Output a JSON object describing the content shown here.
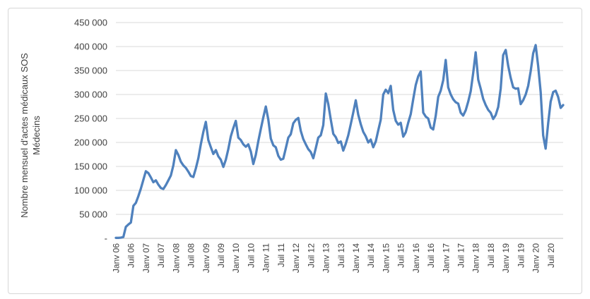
{
  "chart_data": {
    "type": "line",
    "title": "",
    "ylabel_line1": "Nombre mensuel d'actes médicaux SOS",
    "ylabel_line2": "Médecins",
    "xlabel": "",
    "legend": "none",
    "grid": "horizontal",
    "ylim": [
      0,
      450000
    ],
    "y_step": 50000,
    "y_tick_labels": [
      "-",
      "50 000",
      "100 000",
      "150 000",
      "200 000",
      "250 000",
      "300 000",
      "350 000",
      "400 000",
      "450 000"
    ],
    "x_tick_every_months": 6,
    "x_tick_labels": [
      "Janv 06",
      "Juil 06",
      "Janv 07",
      "Juil 07",
      "Janv 08",
      "Juil 08",
      "Janv 09",
      "Juil 09",
      "Janv 10",
      "Juil 10",
      "Janv 11",
      "Juil 11",
      "Janv 12",
      "Juil 12",
      "Janv 13",
      "Juil 13",
      "Janv 14",
      "Juil 14",
      "Janv 15",
      "Juil 15",
      "Janv 16",
      "Juil 16",
      "Janv 17",
      "Juil 17",
      "Janv 18",
      "Juil 18",
      "Janv 19",
      "Juil 19",
      "Janv 20",
      "Juil 20"
    ],
    "line_color": "#4F81BD",
    "gridline_color": "#D9D9D9",
    "axis_line_color": "#BFBFBF",
    "text_color": "#404040",
    "series": [
      {
        "name": "Nombre mensuel d'actes médicaux SOS Médecins",
        "start_month": "Janv 06",
        "values": [
          1000,
          1000,
          1500,
          3000,
          24000,
          29000,
          33000,
          68000,
          74000,
          88000,
          104000,
          122000,
          140000,
          136000,
          127000,
          117000,
          121000,
          112000,
          105000,
          103000,
          111000,
          121000,
          131000,
          152000,
          184000,
          174000,
          160000,
          152000,
          147000,
          139000,
          130000,
          128000,
          146000,
          167000,
          196000,
          222000,
          243000,
          205000,
          190000,
          176000,
          184000,
          171000,
          164000,
          149000,
          164000,
          186000,
          213000,
          230000,
          245000,
          210000,
          205000,
          196000,
          191000,
          196000,
          181000,
          155000,
          174000,
          203000,
          228000,
          252000,
          275000,
          248000,
          208000,
          194000,
          190000,
          172000,
          164000,
          166000,
          188000,
          210000,
          217000,
          240000,
          247000,
          251000,
          224000,
          207000,
          196000,
          186000,
          180000,
          167000,
          188000,
          210000,
          215000,
          236000,
          302000,
          280000,
          248000,
          218000,
          211000,
          199000,
          202000,
          183000,
          197000,
          215000,
          238000,
          262000,
          288000,
          258000,
          238000,
          222000,
          213000,
          200000,
          206000,
          190000,
          202000,
          225000,
          247000,
          300000,
          310000,
          303000,
          318000,
          268000,
          245000,
          237000,
          241000,
          212000,
          221000,
          241000,
          259000,
          290000,
          320000,
          338000,
          348000,
          262000,
          254000,
          250000,
          231000,
          227000,
          255000,
          295000,
          308000,
          330000,
          372000,
          315000,
          300000,
          290000,
          284000,
          281000,
          262000,
          256000,
          267000,
          285000,
          307000,
          345000,
          388000,
          331000,
          312000,
          291000,
          278000,
          268000,
          262000,
          249000,
          257000,
          274000,
          312000,
          382000,
          393000,
          360000,
          335000,
          315000,
          312000,
          313000,
          280000,
          288000,
          300000,
          318000,
          348000,
          386000,
          403000,
          360000,
          305000,
          215000,
          187000,
          240000,
          285000,
          305000,
          308000,
          295000,
          272000,
          278000
        ]
      }
    ]
  }
}
